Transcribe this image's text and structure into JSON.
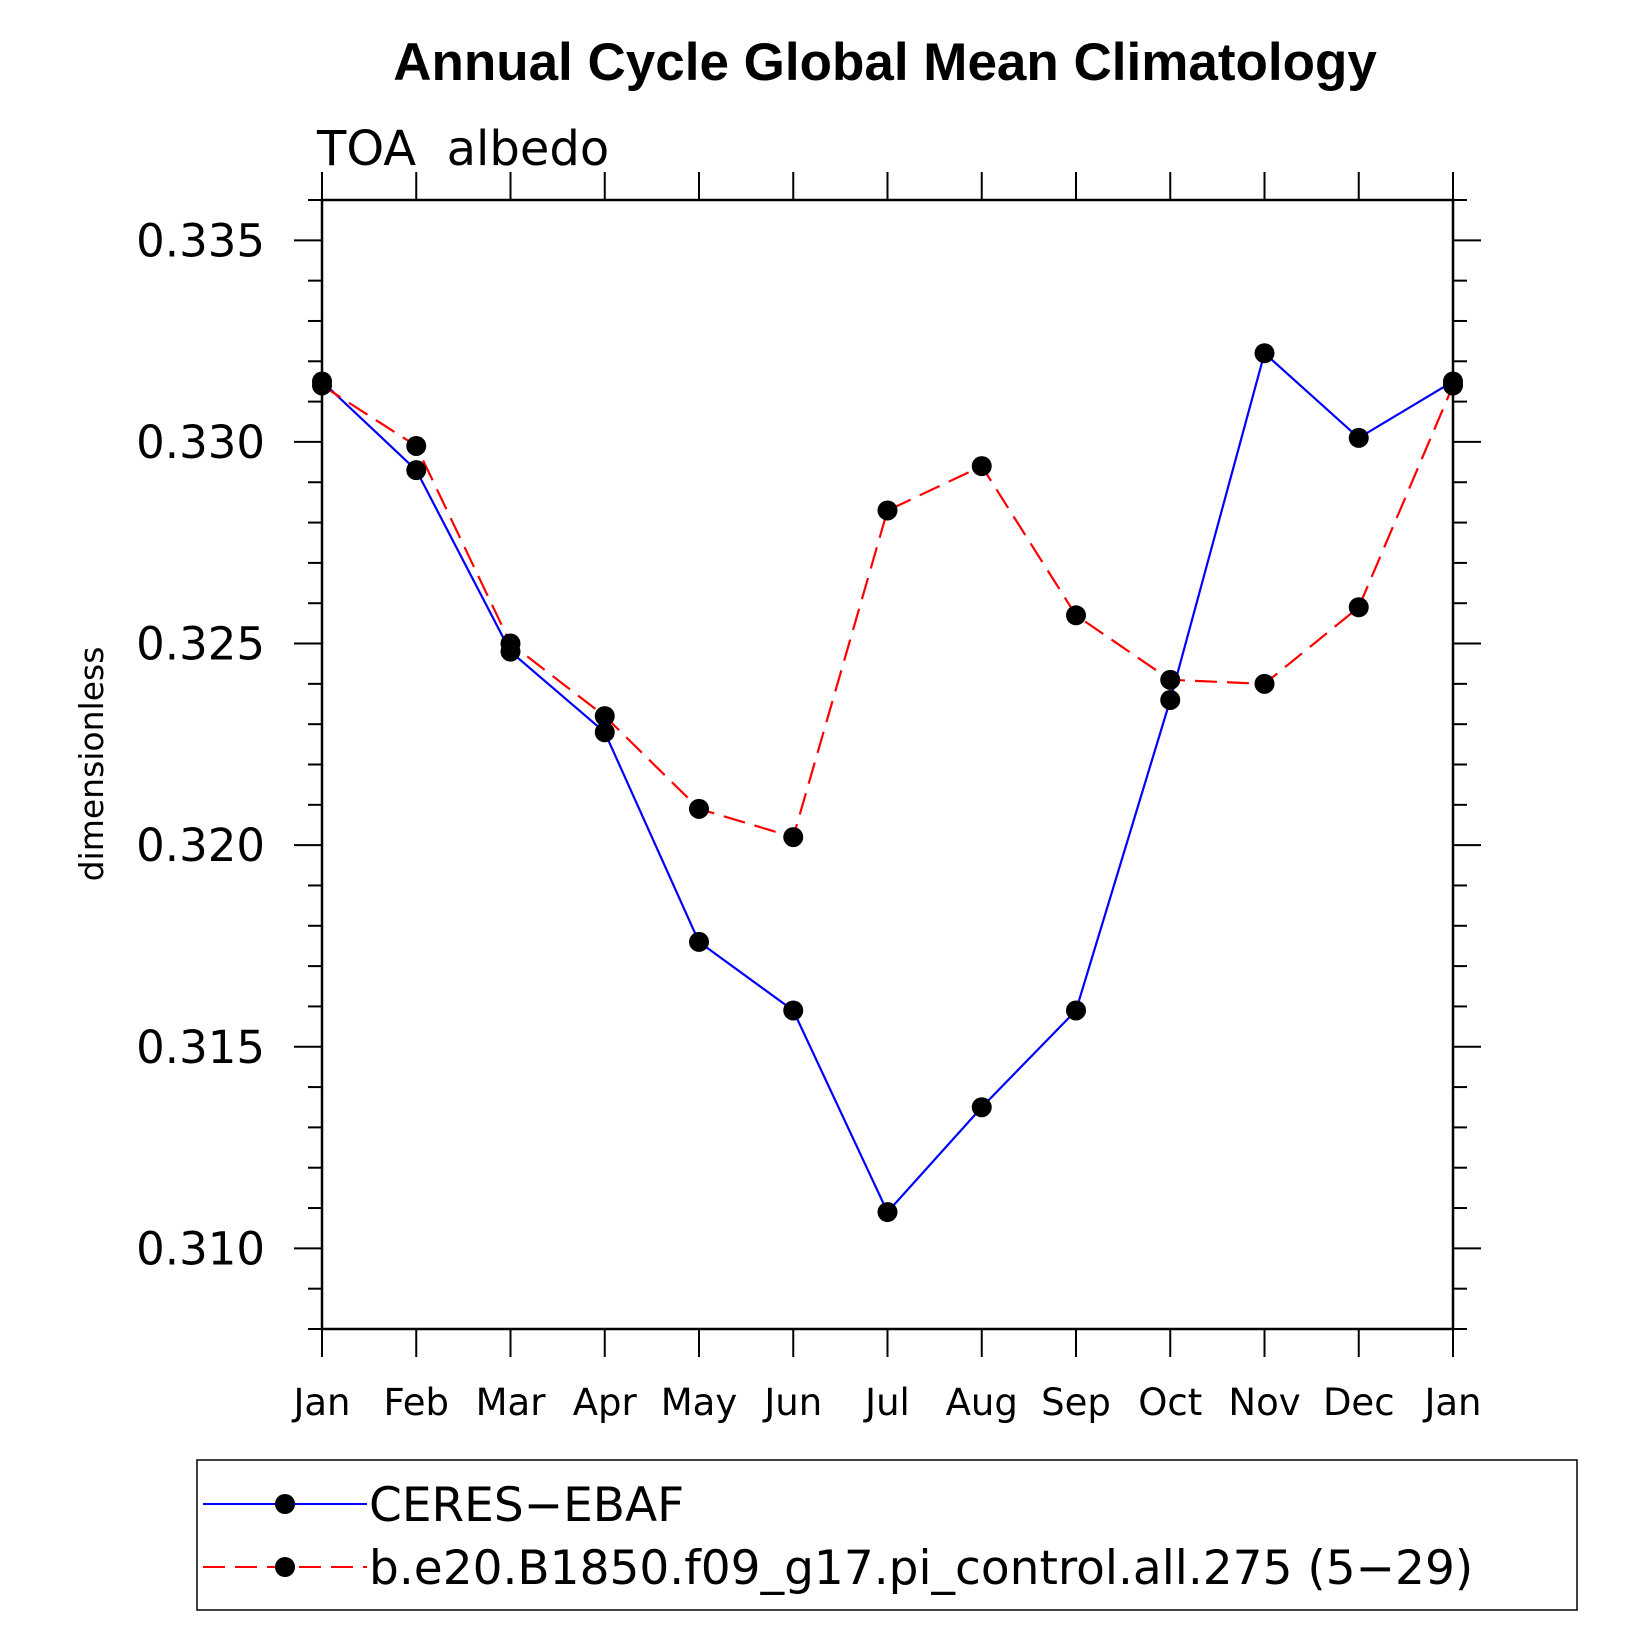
{
  "chart_data": {
    "type": "line",
    "title": "Annual Cycle Global Mean Climatology",
    "subtitle": "TOA  albedo",
    "xlabel": "",
    "ylabel": "dimensionless",
    "categories": [
      "Jan",
      "Feb",
      "Mar",
      "Apr",
      "May",
      "Jun",
      "Jul",
      "Aug",
      "Sep",
      "Oct",
      "Nov",
      "Dec",
      "Jan"
    ],
    "ylim": [
      0.308,
      0.336
    ],
    "yticks": [
      0.31,
      0.315,
      0.32,
      0.325,
      0.33,
      0.335
    ],
    "ytick_labels": [
      "0.310",
      "0.315",
      "0.320",
      "0.325",
      "0.330",
      "0.335"
    ],
    "grid": false,
    "legend_position": "bottom",
    "series": [
      {
        "name": "CERES−EBAF",
        "color": "#0000ff",
        "dash": "solid",
        "marker": "filled-circle",
        "values": [
          0.3315,
          0.3293,
          0.3248,
          0.3228,
          0.3176,
          0.3159,
          0.3109,
          0.3135,
          0.3159,
          0.3236,
          0.3322,
          0.3301,
          0.3315
        ]
      },
      {
        "name": "b.e20.B1850.f09_g17.pi_control.all.275 (5−29)",
        "color": "#ff0000",
        "dash": "dashed",
        "marker": "filled-circle",
        "values": [
          0.3314,
          0.3299,
          0.325,
          0.3232,
          0.3209,
          0.3202,
          0.3283,
          0.3294,
          0.3257,
          0.3241,
          0.324,
          0.3259,
          0.3314
        ]
      }
    ]
  }
}
